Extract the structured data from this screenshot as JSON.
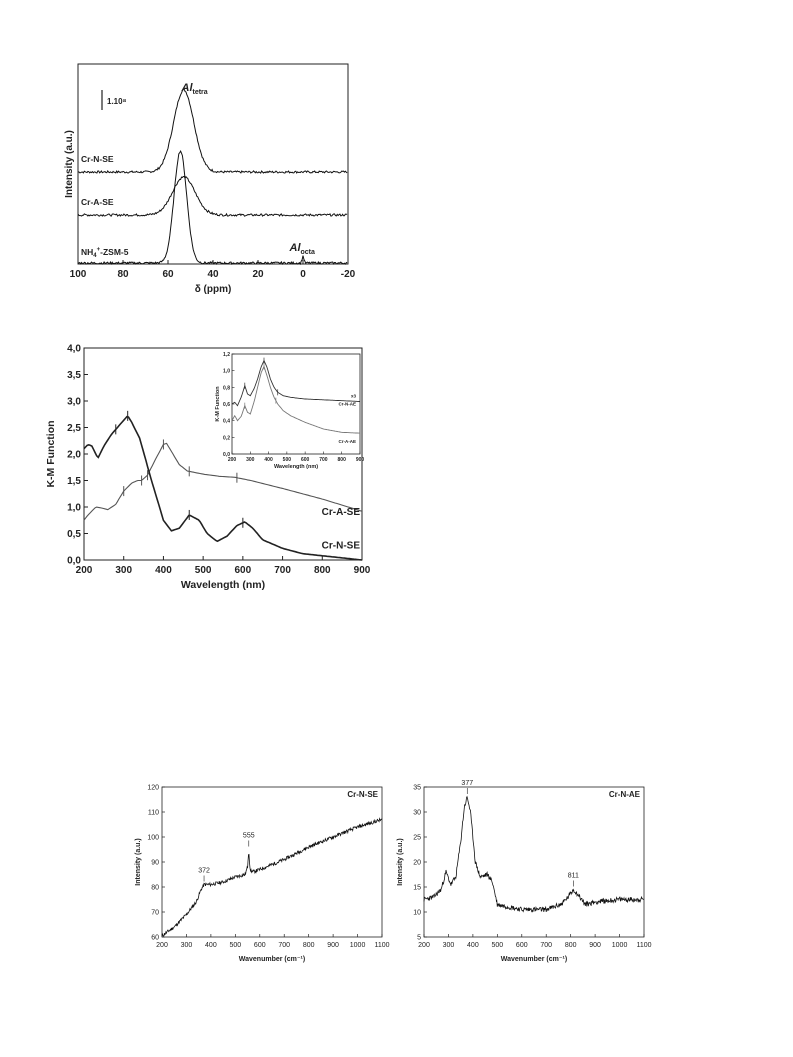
{
  "chart_data": [
    {
      "type": "line",
      "title": "",
      "xlabel": "δ (ppm)",
      "ylabel": "Intensity (a.u.)",
      "xlim": [
        100,
        -20
      ],
      "xticks": [
        100,
        80,
        60,
        40,
        20,
        0,
        -20
      ],
      "scale_bar_label": "1.10⁸",
      "annotations": [
        {
          "text": "Al",
          "sub": "tetra"
        },
        {
          "text": "Al",
          "sub": "octa"
        }
      ],
      "series": [
        {
          "name": "Cr-N-SE",
          "peak_ppm": 53,
          "peak_height": 82,
          "width": 4.5
        },
        {
          "name": "Cr-A-SE",
          "peak_ppm": 53,
          "peak_height": 38,
          "width": 5
        },
        {
          "name": "NH₄⁺-ZSM-5",
          "sub_sup": true,
          "peak_ppm": 54.5,
          "peak_height": 112,
          "width": 2.8,
          "minor_peak_ppm": 0
        }
      ]
    },
    {
      "type": "line",
      "title": "",
      "xlabel": "Wavelength (nm)",
      "ylabel": "K-M Function",
      "xlim": [
        200,
        900
      ],
      "ylim": [
        0,
        4.0
      ],
      "xticks": [
        200,
        300,
        400,
        500,
        600,
        700,
        800,
        900
      ],
      "yticks": [
        "0,0",
        "0,5",
        "1,0",
        "1,5",
        "2,0",
        "2,5",
        "3,0",
        "3,5",
        "4,0"
      ],
      "series": [
        {
          "name": "Cr-A-SE",
          "x": [
            200,
            210,
            230,
            245,
            260,
            280,
            300,
            320,
            335,
            345,
            360,
            380,
            400,
            408,
            420,
            440,
            460,
            500,
            540,
            580,
            620,
            700,
            800,
            900
          ],
          "y": [
            0.75,
            0.85,
            1.0,
            0.98,
            0.95,
            1.05,
            1.3,
            1.45,
            1.5,
            1.5,
            1.6,
            1.9,
            2.18,
            2.2,
            2.05,
            1.8,
            1.68,
            1.62,
            1.58,
            1.56,
            1.5,
            1.35,
            1.15,
            0.92
          ]
        },
        {
          "name": "Cr-N-SE",
          "x": [
            200,
            210,
            220,
            235,
            250,
            270,
            290,
            310,
            320,
            340,
            370,
            400,
            420,
            440,
            465,
            490,
            510,
            535,
            560,
            585,
            605,
            625,
            650,
            700,
            750,
            800,
            850,
            900
          ],
          "y": [
            2.1,
            2.18,
            2.15,
            1.92,
            2.15,
            2.38,
            2.55,
            2.72,
            2.6,
            2.3,
            1.5,
            0.75,
            0.55,
            0.6,
            0.85,
            0.75,
            0.5,
            0.35,
            0.45,
            0.65,
            0.72,
            0.6,
            0.38,
            0.22,
            0.12,
            0.08,
            0.04,
            0.0
          ]
        }
      ],
      "inset": {
        "xlabel": "Wavelength (nm)",
        "ylabel": "K-M Function",
        "xlim": [
          200,
          900
        ],
        "ylim": [
          0,
          1.2
        ],
        "xticks": [
          200,
          300,
          400,
          500,
          600,
          700,
          800,
          900
        ],
        "yticks": [
          "0,0",
          "0,2",
          "0,4",
          "0,6",
          "0,8",
          "1,0",
          "1,2"
        ],
        "scale_note": "x3",
        "series": [
          {
            "name": "Cr-N-AE",
            "x": [
              200,
              215,
              230,
              250,
              270,
              285,
              300,
              320,
              340,
              360,
              375,
              390,
              410,
              430,
              450,
              480,
              520,
              600,
              700,
              800,
              900
            ],
            "y": [
              0.6,
              0.62,
              0.58,
              0.68,
              0.82,
              0.72,
              0.7,
              0.78,
              0.9,
              1.05,
              1.12,
              1.05,
              0.9,
              0.8,
              0.74,
              0.7,
              0.68,
              0.66,
              0.65,
              0.64,
              0.63
            ]
          },
          {
            "name": "Cr-A-AE",
            "x": [
              200,
              215,
              230,
              250,
              270,
              285,
              300,
              320,
              340,
              360,
              375,
              390,
              410,
              430,
              450,
              480,
              520,
              600,
              700,
              800,
              900
            ],
            "y": [
              0.4,
              0.46,
              0.4,
              0.45,
              0.58,
              0.5,
              0.48,
              0.62,
              0.8,
              0.98,
              1.05,
              0.95,
              0.8,
              0.68,
              0.6,
              0.52,
              0.46,
              0.38,
              0.3,
              0.26,
              0.25
            ]
          }
        ]
      }
    },
    {
      "type": "line",
      "title": "Cr-N-SE",
      "xlabel": "Wavenumber (cm⁻¹)",
      "ylabel": "Intensity (a.u.)",
      "xlim": [
        200,
        1100
      ],
      "ylim": [
        60,
        120
      ],
      "xticks": [
        200,
        300,
        400,
        500,
        600,
        700,
        800,
        900,
        1000,
        1100
      ],
      "yticks": [
        60,
        70,
        80,
        90,
        100,
        110,
        120
      ],
      "peak_labels": [
        {
          "x": 372,
          "label": "372"
        },
        {
          "x": 555,
          "label": "555"
        }
      ],
      "series": [
        {
          "name": "Cr-N-SE",
          "x": [
            200,
            250,
            300,
            340,
            360,
            372,
            400,
            450,
            500,
            540,
            550,
            555,
            560,
            570,
            600,
            700,
            800,
            900,
            1000,
            1100
          ],
          "y": [
            60.5,
            64,
            69,
            74,
            79,
            81,
            81,
            82,
            84,
            85,
            88,
            95,
            87,
            86,
            87,
            91,
            96,
            100,
            104,
            107
          ]
        }
      ]
    },
    {
      "type": "line",
      "title": "Cr-N-AE",
      "xlabel": "Wavenumber (cm⁻¹)",
      "ylabel": "Intensity (a.u.)",
      "xlim": [
        200,
        1100
      ],
      "ylim": [
        5,
        35
      ],
      "xticks": [
        200,
        300,
        400,
        500,
        600,
        700,
        800,
        900,
        1000,
        1100
      ],
      "yticks": [
        5,
        10,
        15,
        20,
        25,
        30,
        35
      ],
      "peak_labels": [
        {
          "x": 377,
          "label": "377"
        },
        {
          "x": 811,
          "label": "811"
        }
      ],
      "series": [
        {
          "name": "Cr-N-AE",
          "x": [
            200,
            240,
            270,
            290,
            310,
            330,
            350,
            365,
            377,
            390,
            410,
            430,
            460,
            480,
            500,
            550,
            600,
            700,
            760,
            790,
            811,
            830,
            860,
            900,
            1000,
            1100
          ],
          "y": [
            12.5,
            13,
            14.5,
            18,
            15.5,
            17,
            24,
            31,
            33,
            30,
            20,
            17,
            17.5,
            16,
            11.5,
            11,
            10.5,
            10.5,
            11.5,
            13,
            14.5,
            13.5,
            11.5,
            12,
            12.5,
            12.5
          ]
        }
      ]
    }
  ]
}
